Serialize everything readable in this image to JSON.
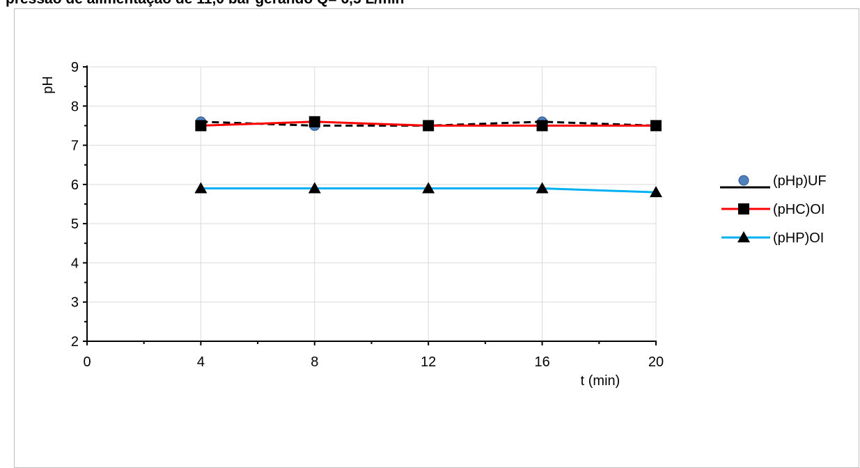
{
  "page": {
    "heading": "pressão de alimentação de 11,0 bar gerando Q= 6,5 L/min"
  },
  "chart_data": {
    "type": "line",
    "title": "",
    "xlabel": "t (min)",
    "ylabel": "pH",
    "xlim": [
      0,
      20
    ],
    "ylim": [
      2,
      9
    ],
    "xticks": [
      0,
      4,
      8,
      12,
      16,
      20
    ],
    "yticks": [
      2,
      3,
      4,
      5,
      6,
      7,
      8,
      9
    ],
    "grid": true,
    "legend_position": "right",
    "x": [
      4,
      8,
      12,
      16,
      20
    ],
    "series": [
      {
        "name": "(pHp)UF",
        "values": [
          7.6,
          7.5,
          7.5,
          7.6,
          7.5
        ],
        "color": "#000000",
        "marker": "circle",
        "marker_color": "#4f81bd",
        "line_style": "dashed"
      },
      {
        "name": "(pHC)OI",
        "values": [
          7.5,
          7.6,
          7.5,
          7.5,
          7.5
        ],
        "color": "#ff0000",
        "marker": "square",
        "marker_color": "#000000",
        "line_style": "solid"
      },
      {
        "name": "(pHP)OI",
        "values": [
          5.9,
          5.9,
          5.9,
          5.9,
          5.8
        ],
        "color": "#00b0f0",
        "marker": "triangle",
        "marker_color": "#000000",
        "line_style": "solid"
      }
    ]
  }
}
